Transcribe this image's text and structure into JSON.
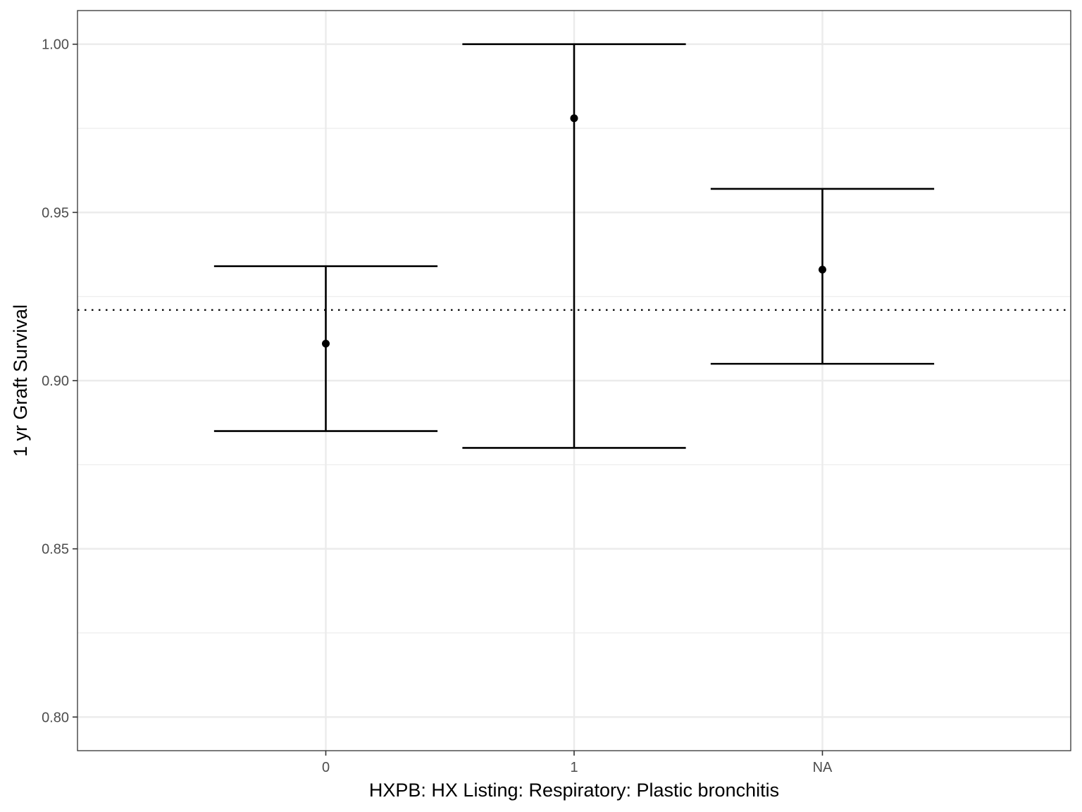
{
  "chart_data": {
    "type": "errorbar",
    "title": "",
    "xlabel": "HXPB: HX Listing: Respiratory: Plastic bronchitis",
    "ylabel": "1 yr Graft Survival",
    "categories": [
      "0",
      "1",
      "NA"
    ],
    "estimates": [
      0.911,
      0.978,
      0.933
    ],
    "lower": [
      0.885,
      0.88,
      0.905
    ],
    "upper": [
      0.934,
      1.0,
      0.957
    ],
    "reference_line": 0.921,
    "ylim": [
      0.79,
      1.01
    ],
    "yticks": [
      0.8,
      0.85,
      0.9,
      0.95,
      1.0
    ],
    "ytick_labels": [
      "0.80",
      "0.85",
      "0.90",
      "0.95",
      "1.00"
    ],
    "grid": true,
    "legend": "none"
  }
}
